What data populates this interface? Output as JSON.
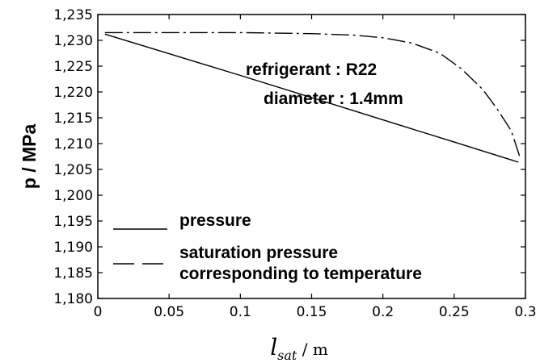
{
  "chart_data": {
    "type": "line",
    "xlabel": {
      "symbol": "l",
      "subscript": "sat",
      "unit": " / m"
    },
    "ylabel": "p / MPa",
    "xlim": [
      0,
      0.3
    ],
    "ylim": [
      1.18,
      1.235
    ],
    "x_ticks": [
      {
        "value": 0,
        "label": "0"
      },
      {
        "value": 0.05,
        "label": "0.05"
      },
      {
        "value": 0.1,
        "label": "0.1"
      },
      {
        "value": 0.15,
        "label": "0.15"
      },
      {
        "value": 0.2,
        "label": "0.2"
      },
      {
        "value": 0.25,
        "label": "0.25"
      },
      {
        "value": 0.3,
        "label": "0.3"
      }
    ],
    "y_ticks": [
      {
        "value": 1.18,
        "label": "1,180"
      },
      {
        "value": 1.185,
        "label": "1,185"
      },
      {
        "value": 1.19,
        "label": "1,190"
      },
      {
        "value": 1.195,
        "label": "1,195"
      },
      {
        "value": 1.2,
        "label": "1,200"
      },
      {
        "value": 1.205,
        "label": "1,205"
      },
      {
        "value": 1.21,
        "label": "1,210"
      },
      {
        "value": 1.215,
        "label": "1,215"
      },
      {
        "value": 1.22,
        "label": "1,220"
      },
      {
        "value": 1.225,
        "label": "1,225"
      },
      {
        "value": 1.23,
        "label": "1,230"
      },
      {
        "value": 1.235,
        "label": "1,235"
      }
    ],
    "grid": false,
    "legend_position": "bottom-left",
    "series": [
      {
        "name": "pressure",
        "line_style": "solid",
        "points": [
          [
            0.005,
            1.2312
          ],
          [
            0.05,
            1.2274
          ],
          [
            0.1,
            1.2232
          ],
          [
            0.15,
            1.2189
          ],
          [
            0.2,
            1.2146
          ],
          [
            0.25,
            1.2103
          ],
          [
            0.295,
            1.2064
          ]
        ]
      },
      {
        "name": "saturation pressure corresponding to temperature",
        "line_style": "dash-dot",
        "points": [
          [
            0.005,
            1.2315
          ],
          [
            0.05,
            1.2315
          ],
          [
            0.1,
            1.2315
          ],
          [
            0.15,
            1.2313
          ],
          [
            0.18,
            1.231
          ],
          [
            0.2,
            1.2305
          ],
          [
            0.22,
            1.2295
          ],
          [
            0.24,
            1.2275
          ],
          [
            0.255,
            1.2245
          ],
          [
            0.27,
            1.2205
          ],
          [
            0.28,
            1.2168
          ],
          [
            0.29,
            1.2125
          ],
          [
            0.296,
            1.2075
          ]
        ]
      }
    ],
    "legend": {
      "entry1": "pressure",
      "entry2_line1": "saturation pressure",
      "entry2_line2": "corresponding to temperature"
    },
    "annotations": {
      "line1": "refrigerant : R22",
      "line2": "diameter : 1.4mm"
    }
  }
}
